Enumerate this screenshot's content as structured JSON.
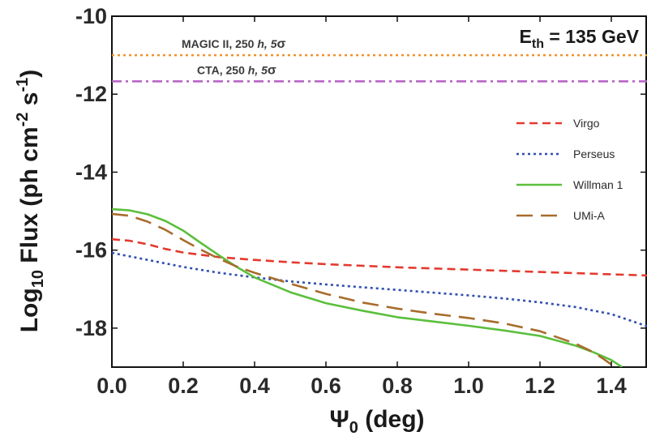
{
  "chart_data": {
    "type": "line",
    "title": "",
    "annotation_main": "E",
    "annotation_sub": "th",
    "annotation_rest": " = 135 GeV",
    "xlabel_main": "Ψ",
    "xlabel_sub": "0",
    "xlabel_rest": " (deg)",
    "ylabel_prefix": "Log",
    "ylabel_sub": "10",
    "ylabel_mid": " Flux (ph cm",
    "ylabel_sup1": "-2",
    "ylabel_mid2": " s",
    "ylabel_sup2": "-1",
    "ylabel_end": ")",
    "xlim": [
      0.0,
      1.5
    ],
    "ylim": [
      -19,
      -10
    ],
    "xticks": [
      {
        "v": 0.0,
        "label": "0.0"
      },
      {
        "v": 0.2,
        "label": "0.2"
      },
      {
        "v": 0.4,
        "label": "0.4"
      },
      {
        "v": 0.6,
        "label": "0.6"
      },
      {
        "v": 0.8,
        "label": "0.8"
      },
      {
        "v": 1.0,
        "label": "1.0"
      },
      {
        "v": 1.2,
        "label": "1.2"
      },
      {
        "v": 1.4,
        "label": "1.4"
      }
    ],
    "yticks": [
      {
        "v": -10,
        "label": "-10"
      },
      {
        "v": -12,
        "label": "-12"
      },
      {
        "v": -14,
        "label": "-14"
      },
      {
        "v": -16,
        "label": "-16"
      },
      {
        "v": -18,
        "label": "-18"
      }
    ],
    "reference_lines": [
      {
        "value": -11.0,
        "label": "MAGIC II, 250",
        "label_italic": "h, 5",
        "label_sigma": "σ",
        "color": "#f0922b",
        "dash": "dotted"
      },
      {
        "value": -11.67,
        "label": "CTA, 250",
        "label_italic": "h, 5",
        "label_sigma": "σ",
        "color": "#b55fc4",
        "dash": "dashdot"
      }
    ],
    "series": [
      {
        "name": "Virgo",
        "color": "#e33a2e",
        "dash": "dashed",
        "x": [
          0.0,
          0.05,
          0.1,
          0.15,
          0.2,
          0.3,
          0.4,
          0.5,
          0.6,
          0.8,
          1.0,
          1.2,
          1.4,
          1.5
        ],
        "y": [
          -15.72,
          -15.76,
          -15.85,
          -15.97,
          -16.06,
          -16.18,
          -16.25,
          -16.31,
          -16.36,
          -16.44,
          -16.5,
          -16.56,
          -16.62,
          -16.65
        ]
      },
      {
        "name": "Perseus",
        "color": "#2f4fb0",
        "dash": "dotted",
        "x": [
          0.0,
          0.1,
          0.2,
          0.3,
          0.4,
          0.5,
          0.6,
          0.7,
          0.8,
          0.9,
          1.0,
          1.1,
          1.2,
          1.3,
          1.4,
          1.5
        ],
        "y": [
          -16.07,
          -16.25,
          -16.43,
          -16.58,
          -16.7,
          -16.8,
          -16.88,
          -16.95,
          -17.02,
          -17.09,
          -17.16,
          -17.24,
          -17.34,
          -17.46,
          -17.64,
          -17.95
        ]
      },
      {
        "name": "Willman 1",
        "color": "#5bbf3c",
        "dash": "solid",
        "x": [
          0.0,
          0.05,
          0.1,
          0.15,
          0.2,
          0.25,
          0.3,
          0.35,
          0.4,
          0.5,
          0.6,
          0.7,
          0.8,
          0.9,
          1.0,
          1.1,
          1.2,
          1.3,
          1.35,
          1.4,
          1.43
        ],
        "y": [
          -14.95,
          -14.98,
          -15.08,
          -15.25,
          -15.5,
          -15.82,
          -16.13,
          -16.43,
          -16.7,
          -17.08,
          -17.36,
          -17.55,
          -17.72,
          -17.83,
          -17.94,
          -18.06,
          -18.2,
          -18.45,
          -18.62,
          -18.82,
          -19.0
        ]
      },
      {
        "name": "UMi-A",
        "color": "#a86c2c",
        "dash": "longdash",
        "x": [
          0.0,
          0.05,
          0.1,
          0.15,
          0.2,
          0.25,
          0.3,
          0.35,
          0.4,
          0.5,
          0.6,
          0.7,
          0.8,
          0.9,
          1.0,
          1.1,
          1.2,
          1.3,
          1.35,
          1.38,
          1.41
        ],
        "y": [
          -15.07,
          -15.12,
          -15.27,
          -15.48,
          -15.74,
          -15.99,
          -16.22,
          -16.42,
          -16.58,
          -16.86,
          -17.12,
          -17.34,
          -17.5,
          -17.63,
          -17.74,
          -17.88,
          -18.08,
          -18.4,
          -18.62,
          -18.8,
          -19.0
        ]
      }
    ]
  }
}
